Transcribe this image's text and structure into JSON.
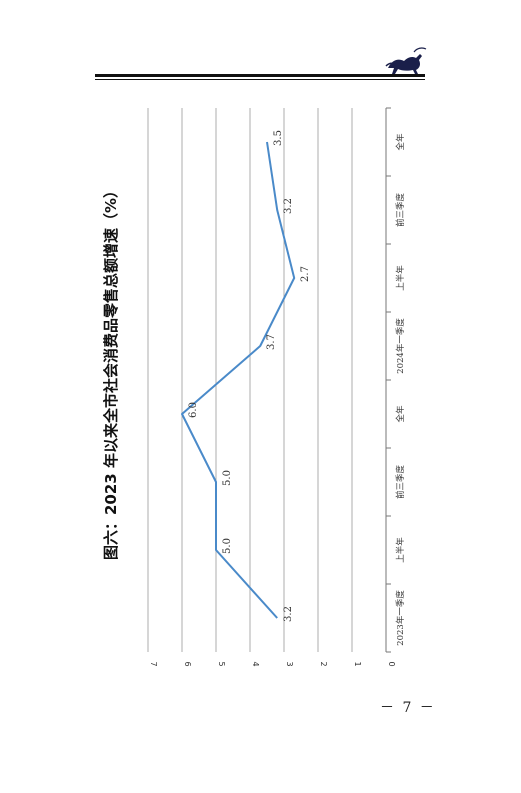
{
  "figure": {
    "title": "图六：2023 年以来全市社会消费品零售总额增速（%）"
  },
  "chart_data": {
    "type": "line",
    "title": "图六：2023 年以来全市社会消费品零售总额增速（%）",
    "categories": [
      "2023年一季度",
      "上半年",
      "前三季度",
      "全年",
      "2024年一季度",
      "上半年",
      "前三季度",
      "全年"
    ],
    "values": [
      3.2,
      5.0,
      5.0,
      6.0,
      3.7,
      2.7,
      3.2,
      3.5
    ],
    "data_labels": [
      "3.2",
      "5.0",
      "5.0",
      "6.0",
      "3.7",
      "2.7",
      "3.2",
      "3.5"
    ],
    "y_ticks": [
      "0",
      "1",
      "2",
      "3",
      "4",
      "5",
      "6",
      "7"
    ],
    "ylim": [
      0,
      7
    ],
    "grid": true,
    "line_color": "#4a8ac9"
  },
  "footer": {
    "page_number": "－ 7 －"
  }
}
